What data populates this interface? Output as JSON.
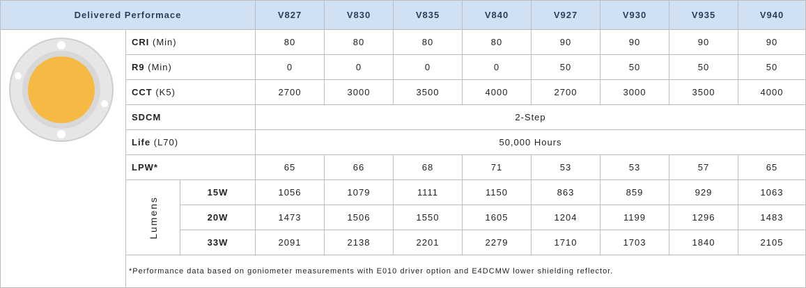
{
  "table": {
    "header": [
      "Delivered Performace",
      "V827",
      "V830",
      "V835",
      "V840",
      "V927",
      "V930",
      "V935",
      "V940"
    ],
    "rows": [
      {
        "label": "CRI",
        "unit": "(Min)",
        "cells": [
          80,
          80,
          80,
          80,
          90,
          90,
          90,
          90
        ]
      },
      {
        "label": "R9",
        "unit": "(Min)",
        "cells": [
          0,
          0,
          0,
          0,
          50,
          50,
          50,
          50
        ]
      },
      {
        "label": "CCT",
        "unit": "(K5)",
        "cells": [
          2700,
          3000,
          3500,
          4000,
          2700,
          3000,
          3500,
          4000
        ]
      },
      {
        "label": "SDCM",
        "span": "2-Step"
      },
      {
        "label": "Life",
        "unit": "(L70)",
        "span": "50,000 Hours"
      },
      {
        "label": "LPW*",
        "cells": [
          65,
          66,
          68,
          71,
          53,
          53,
          57,
          65
        ]
      }
    ],
    "lumens": {
      "label": "Lumens",
      "rows": [
        {
          "watt": "15W",
          "cells": [
            1056,
            1079,
            1111,
            1150,
            863,
            859,
            929,
            1063
          ]
        },
        {
          "watt": "20W",
          "cells": [
            1473,
            1506,
            1550,
            1605,
            1204,
            1199,
            1296,
            1483
          ]
        },
        {
          "watt": "33W",
          "cells": [
            2091,
            2138,
            2201,
            2279,
            1710,
            1703,
            1840,
            2105
          ]
        }
      ]
    },
    "footnote": "*Performance data based on goniometer measurements with E010 driver option and E4DCMW lower shielding reflector."
  }
}
